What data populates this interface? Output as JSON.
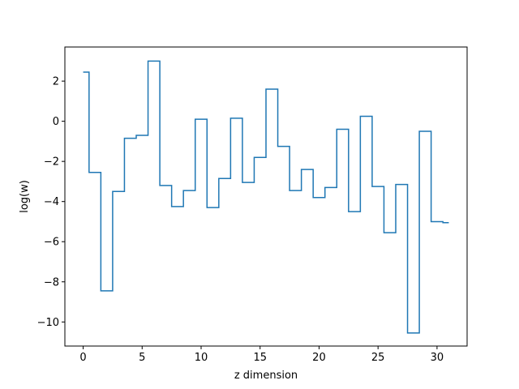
{
  "chart_data": {
    "type": "line",
    "drawstyle": "steps-mid",
    "title": "",
    "xlabel": "z dimension",
    "ylabel": "log(w)",
    "xlim": [
      -1.55,
      32.55
    ],
    "ylim": [
      -11.2,
      3.7
    ],
    "xticks": [
      0,
      5,
      10,
      15,
      20,
      25,
      30
    ],
    "yticks": [
      -10,
      -8,
      -6,
      -4,
      -2,
      0,
      2
    ],
    "ytick_labels": [
      "−10",
      "−8",
      "−6",
      "−4",
      "−2",
      "0",
      "2"
    ],
    "grid": false,
    "series": [
      {
        "color": "#1f77b4",
        "x": [
          0,
          1,
          2,
          3,
          4,
          5,
          6,
          7,
          8,
          9,
          10,
          11,
          12,
          13,
          14,
          15,
          16,
          17,
          18,
          19,
          20,
          21,
          22,
          23,
          24,
          25,
          26,
          27,
          28,
          29,
          30,
          31
        ],
        "y": [
          2.45,
          -2.55,
          -8.45,
          -3.5,
          -0.85,
          -0.7,
          3.0,
          -3.2,
          -4.25,
          -3.45,
          0.1,
          -4.3,
          -2.85,
          0.15,
          -3.05,
          -1.8,
          1.6,
          -1.25,
          -3.45,
          -2.4,
          -3.8,
          -3.3,
          -0.4,
          -4.5,
          0.25,
          -3.25,
          -5.55,
          -3.15,
          -10.55,
          -0.5,
          -5.0,
          -5.05
        ]
      }
    ]
  }
}
